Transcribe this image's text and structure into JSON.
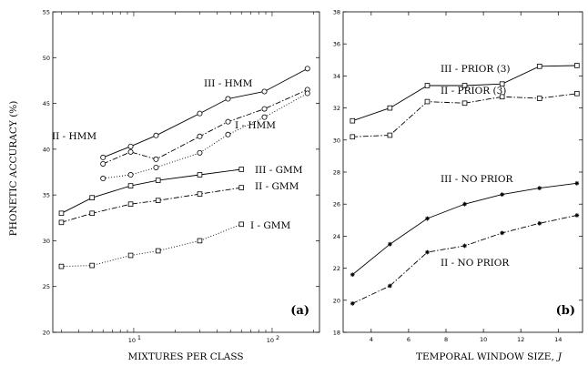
{
  "ylabel": "PHONETIC ACCURACY (%)",
  "chart_data": [
    {
      "type": "line",
      "panel_label": "(a)",
      "xlabel": "MIXTURES PER CLASS",
      "xscale": "log",
      "xlim": [
        2.6,
        220
      ],
      "xticks": [
        {
          "value": 10,
          "base": "10",
          "exp": "1"
        },
        {
          "value": 100,
          "base": "10",
          "exp": "2"
        }
      ],
      "ylim": [
        20,
        55
      ],
      "yticks": [
        20,
        25,
        30,
        35,
        40,
        45,
        50,
        55
      ],
      "grid": false,
      "series": [
        {
          "name": "III - HMM",
          "style": "solid",
          "marker": "circle",
          "x": [
            6,
            9.5,
            14.5,
            30,
            48,
            88,
            180
          ],
          "y": [
            39.1,
            40.3,
            41.5,
            43.9,
            45.5,
            46.3,
            48.8
          ]
        },
        {
          "name": "II - HMM",
          "style": "dashdot",
          "marker": "circle",
          "x": [
            6,
            9.5,
            14.5,
            30,
            48,
            88,
            180
          ],
          "y": [
            38.4,
            39.7,
            38.9,
            41.4,
            43.0,
            44.4,
            46.5
          ]
        },
        {
          "name": "I - HMM",
          "style": "dotted",
          "marker": "circle",
          "x": [
            6,
            9.5,
            14.5,
            30,
            48,
            88,
            180
          ],
          "y": [
            36.8,
            37.2,
            38.0,
            39.6,
            41.6,
            43.5,
            46.1
          ]
        },
        {
          "name": "III - GMM",
          "style": "solid",
          "marker": "square",
          "x": [
            3,
            5,
            9.5,
            15,
            30,
            60
          ],
          "y": [
            33.0,
            34.7,
            36.0,
            36.6,
            37.2,
            37.8
          ]
        },
        {
          "name": "II - GMM",
          "style": "dashdot",
          "marker": "square",
          "x": [
            3,
            5,
            9.5,
            15,
            30,
            60
          ],
          "y": [
            32.0,
            33.0,
            34.0,
            34.4,
            35.1,
            35.8
          ]
        },
        {
          "name": "I - GMM",
          "style": "dotted",
          "marker": "square",
          "x": [
            3,
            5,
            9.5,
            15,
            30,
            60
          ],
          "y": [
            27.2,
            27.3,
            28.4,
            28.9,
            30.0,
            31.8
          ]
        }
      ]
    },
    {
      "type": "line",
      "panel_label": "(b)",
      "xlabel": "TEMPORAL WINDOW SIZE,",
      "xlabel_var": "J",
      "xlim": [
        2.5,
        15.3
      ],
      "xticks": [
        4,
        6,
        8,
        10,
        12,
        14
      ],
      "ylim": [
        18,
        38
      ],
      "yticks": [
        18,
        20,
        22,
        24,
        26,
        28,
        30,
        32,
        34,
        36,
        38
      ],
      "grid": false,
      "series": [
        {
          "name": "III - PRIOR (3)",
          "style": "solid",
          "marker": "square",
          "x": [
            3,
            5,
            7,
            9,
            11,
            13,
            15
          ],
          "y": [
            31.2,
            32.0,
            33.4,
            33.4,
            33.5,
            34.6,
            34.65
          ]
        },
        {
          "name": "II - PRIOR (3)",
          "style": "dashdot",
          "marker": "square",
          "x": [
            3,
            5,
            7,
            9,
            11,
            13,
            15
          ],
          "y": [
            30.2,
            30.3,
            32.4,
            32.3,
            32.7,
            32.6,
            32.9
          ]
        },
        {
          "name": "III - NO PRIOR",
          "style": "solid",
          "marker": "star",
          "x": [
            3,
            5,
            7,
            9,
            11,
            13,
            15
          ],
          "y": [
            21.6,
            23.5,
            25.1,
            26.0,
            26.6,
            27.0,
            27.3
          ]
        },
        {
          "name": "II - NO PRIOR",
          "style": "dashdot",
          "marker": "star",
          "x": [
            3,
            5,
            7,
            9,
            11,
            13,
            15
          ],
          "y": [
            19.8,
            20.9,
            23.0,
            23.4,
            24.2,
            24.8,
            25.3
          ]
        }
      ]
    }
  ]
}
